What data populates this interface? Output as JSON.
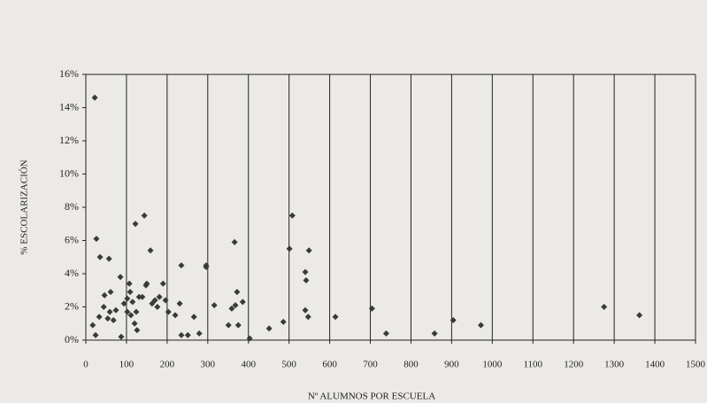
{
  "chart_data": {
    "type": "scatter",
    "xlabel": "Nº ALUMNOS POR ESCUELA",
    "ylabel": "% ESCOLARIZACIÓN",
    "color": "#3a3a3a",
    "grid": "vertical",
    "xlim": [
      0,
      1500
    ],
    "xticks": [
      0,
      100,
      200,
      300,
      400,
      500,
      600,
      700,
      800,
      900,
      1000,
      1100,
      1200,
      1300,
      1400,
      1500
    ],
    "ylim": [
      0,
      16
    ],
    "yticks": [
      {
        "value": 0,
        "label": "0%"
      },
      {
        "value": 2,
        "label": "2%"
      },
      {
        "value": 4,
        "label": "4%"
      },
      {
        "value": 6,
        "label": "6%"
      },
      {
        "value": 8,
        "label": "8%"
      },
      {
        "value": 10,
        "label": "10%"
      },
      {
        "value": 12,
        "label": "12%"
      },
      {
        "value": 14,
        "label": "14%"
      },
      {
        "value": 16,
        "label": "16%"
      }
    ],
    "x": [
      22,
      26,
      35,
      57,
      17,
      24,
      33,
      44,
      46,
      61,
      54,
      68,
      59,
      74,
      85,
      87,
      94,
      102,
      102,
      107,
      109,
      111,
      115,
      120,
      122,
      124,
      126,
      131,
      139,
      144,
      148,
      150,
      159,
      163,
      170,
      176,
      181,
      190,
      196,
      203,
      220,
      231,
      235,
      235,
      251,
      266,
      279,
      296,
      296,
      316,
      351,
      359,
      366,
      368,
      372,
      375,
      386,
      403,
      451,
      486,
      501,
      508,
      540,
      542,
      540,
      547,
      549,
      614,
      704,
      739,
      858,
      904,
      972,
      1275,
      1362
    ],
    "values": [
      14.6,
      6.1,
      5.0,
      4.9,
      0.9,
      0.3,
      1.4,
      2.0,
      2.7,
      2.9,
      1.3,
      1.2,
      1.7,
      1.8,
      3.8,
      0.2,
      2.2,
      2.5,
      1.7,
      3.4,
      2.9,
      1.5,
      2.3,
      1.0,
      7.0,
      1.7,
      0.6,
      2.6,
      2.6,
      7.5,
      3.3,
      3.4,
      5.4,
      2.2,
      2.4,
      2.0,
      2.6,
      3.4,
      2.4,
      1.7,
      1.5,
      2.2,
      4.5,
      0.3,
      0.3,
      1.4,
      0.4,
      4.5,
      4.4,
      2.1,
      0.9,
      1.9,
      5.9,
      2.1,
      2.9,
      0.9,
      2.3,
      0.1,
      0.7,
      1.1,
      5.5,
      7.5,
      4.1,
      3.6,
      1.8,
      1.4,
      5.4,
      1.4,
      1.9,
      0.4,
      0.4,
      1.2,
      0.9,
      2.0,
      1.5
    ]
  }
}
